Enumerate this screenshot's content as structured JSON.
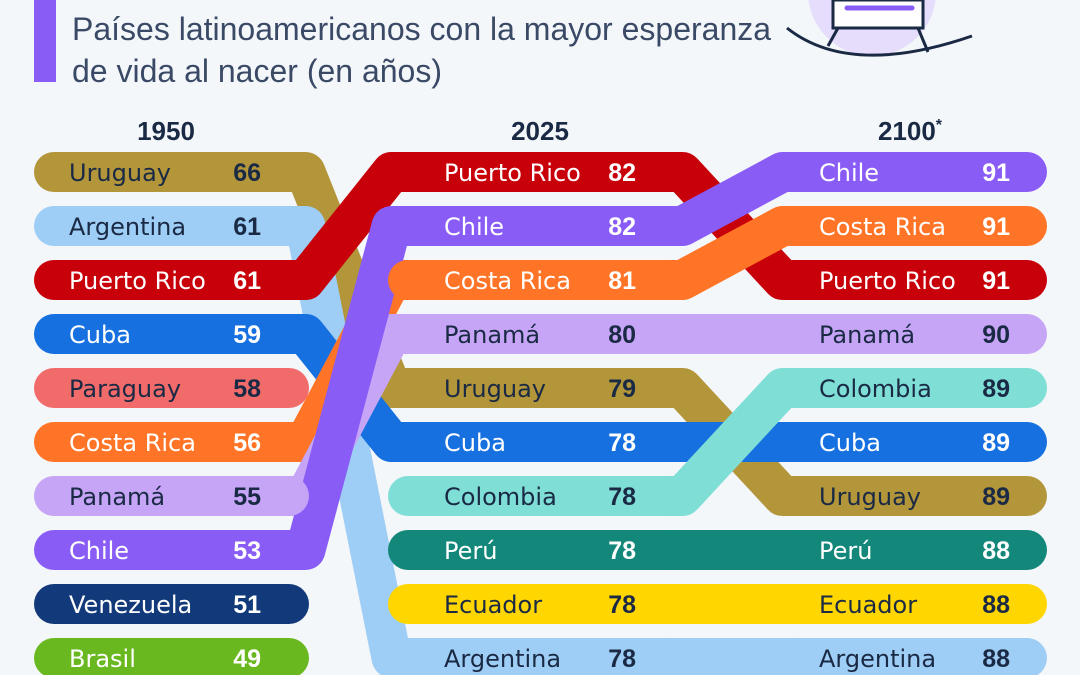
{
  "title": "Países latinoamericanos con la mayor esperanza de vida al nacer (en años)",
  "chart_data": {
    "type": "table",
    "columns": [
      {
        "year": "1950",
        "sup": "",
        "rows": [
          {
            "country": "Uruguay",
            "value": 66
          },
          {
            "country": "Argentina",
            "value": 61
          },
          {
            "country": "Puerto Rico",
            "value": 61
          },
          {
            "country": "Cuba",
            "value": 59
          },
          {
            "country": "Paraguay",
            "value": 58
          },
          {
            "country": "Costa Rica",
            "value": 56
          },
          {
            "country": "Panamá",
            "value": 55
          },
          {
            "country": "Chile",
            "value": 53
          },
          {
            "country": "Venezuela",
            "value": 51
          },
          {
            "country": "Brasil",
            "value": 49
          }
        ]
      },
      {
        "year": "2025",
        "sup": "",
        "rows": [
          {
            "country": "Puerto Rico",
            "value": 82
          },
          {
            "country": "Chile",
            "value": 82
          },
          {
            "country": "Costa Rica",
            "value": 81
          },
          {
            "country": "Panamá",
            "value": 80
          },
          {
            "country": "Uruguay",
            "value": 79
          },
          {
            "country": "Cuba",
            "value": 78
          },
          {
            "country": "Colombia",
            "value": 78
          },
          {
            "country": "Perú",
            "value": 78
          },
          {
            "country": "Ecuador",
            "value": 78
          },
          {
            "country": "Argentina",
            "value": 78
          }
        ]
      },
      {
        "year": "2100",
        "sup": "*",
        "rows": [
          {
            "country": "Chile",
            "value": 91
          },
          {
            "country": "Costa Rica",
            "value": 91
          },
          {
            "country": "Puerto Rico",
            "value": 91
          },
          {
            "country": "Panamá",
            "value": 90
          },
          {
            "country": "Colombia",
            "value": 89
          },
          {
            "country": "Cuba",
            "value": 89
          },
          {
            "country": "Uruguay",
            "value": 89
          },
          {
            "country": "Perú",
            "value": 88
          },
          {
            "country": "Ecuador",
            "value": 88
          },
          {
            "country": "Argentina",
            "value": 88
          }
        ]
      }
    ],
    "colors": {
      "Uruguay": "#b3953a",
      "Argentina": "#9ecdf5",
      "Puerto Rico": "#c8000a",
      "Cuba": "#1670e0",
      "Paraguay": "#f26b6b",
      "Costa Rica": "#ff7426",
      "Panamá": "#c6a5f7",
      "Chile": "#8a5cf6",
      "Venezuela": "#123a7a",
      "Brasil": "#6ab81f",
      "Colombia": "#7fded6",
      "Perú": "#13887a",
      "Ecuador": "#ffd600"
    },
    "dark_text_countries": [
      "Uruguay",
      "Argentina",
      "Paraguay",
      "Panamá",
      "Colombia",
      "Ecuador"
    ],
    "accent_color": "#8a5cf6"
  }
}
